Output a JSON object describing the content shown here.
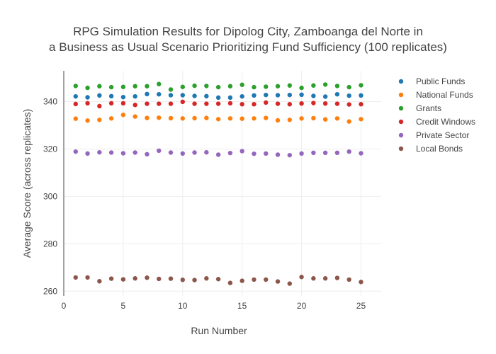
{
  "chart_data": {
    "type": "scatter",
    "title_lines": [
      "RPG Simulation Results for Dipolog City, Zamboanga del Norte in",
      "a Business as Usual Scenario Prioritizing Fund Sufficiency (100 replicates)"
    ],
    "xlabel": "Run Number",
    "ylabel": "Average Score (across replicates)",
    "xlim": [
      0,
      26.7
    ],
    "ylim": [
      258,
      353
    ],
    "x_ticks": [
      0,
      5,
      10,
      15,
      20,
      25
    ],
    "y_ticks": [
      260,
      280,
      300,
      320,
      340
    ],
    "grid": true,
    "legend_position": "top-right",
    "x": [
      1,
      2,
      3,
      4,
      5,
      6,
      7,
      8,
      9,
      10,
      11,
      12,
      13,
      14,
      15,
      16,
      17,
      18,
      19,
      20,
      21,
      22,
      23,
      24,
      25
    ],
    "series": [
      {
        "name": "Public Funds",
        "color": "#1f77b4",
        "values": [
          342.2,
          341.8,
          342.6,
          342.3,
          341.9,
          342.2,
          343.2,
          343.1,
          342.7,
          342.7,
          342.4,
          342.3,
          341.7,
          341.7,
          342.2,
          342.6,
          342.8,
          342.7,
          342.8,
          342.9,
          342.4,
          342.1,
          343.1,
          342.5,
          342.6
        ]
      },
      {
        "name": "National Funds",
        "color": "#ff7f0e",
        "values": [
          332.8,
          332.0,
          332.3,
          332.9,
          334.4,
          333.7,
          333.1,
          333.2,
          333.0,
          332.9,
          333.0,
          333.1,
          332.6,
          332.9,
          332.8,
          332.9,
          333.1,
          332.1,
          332.3,
          332.9,
          333.0,
          332.5,
          332.9,
          331.6,
          332.6
        ]
      },
      {
        "name": "Grants",
        "color": "#2ca02c",
        "values": [
          346.6,
          345.8,
          346.5,
          346.1,
          346.2,
          346.5,
          346.5,
          347.4,
          345.1,
          346.2,
          346.7,
          346.6,
          346.1,
          346.5,
          347.1,
          346.1,
          346.3,
          346.5,
          346.8,
          345.8,
          346.8,
          347.2,
          346.6,
          346.1,
          346.9
        ]
      },
      {
        "name": "Credit Windows",
        "color": "#d62728",
        "values": [
          339.0,
          339.3,
          338.1,
          339.3,
          339.3,
          338.6,
          339.1,
          339.1,
          339.1,
          339.9,
          339.1,
          339.1,
          339.1,
          339.3,
          338.9,
          338.9,
          339.6,
          339.1,
          338.9,
          339.2,
          339.4,
          339.2,
          339.1,
          338.8,
          338.9
        ]
      },
      {
        "name": "Private Sector",
        "color": "#9467bd",
        "values": [
          318.9,
          318.1,
          318.6,
          318.5,
          318.2,
          318.5,
          317.8,
          319.3,
          318.5,
          318.1,
          318.5,
          318.6,
          317.6,
          318.3,
          319.1,
          318.0,
          318.1,
          317.6,
          317.4,
          318.1,
          318.4,
          318.4,
          318.4,
          318.9,
          318.2
        ]
      },
      {
        "name": "Local Bonds",
        "color": "#8c564b",
        "values": [
          265.8,
          265.8,
          264.2,
          265.3,
          265.0,
          265.4,
          265.7,
          265.2,
          265.3,
          264.8,
          264.7,
          265.4,
          265.1,
          263.5,
          264.4,
          264.9,
          264.9,
          264.1,
          263.2,
          266.0,
          265.4,
          265.4,
          265.6,
          264.9,
          263.9
        ]
      }
    ]
  }
}
